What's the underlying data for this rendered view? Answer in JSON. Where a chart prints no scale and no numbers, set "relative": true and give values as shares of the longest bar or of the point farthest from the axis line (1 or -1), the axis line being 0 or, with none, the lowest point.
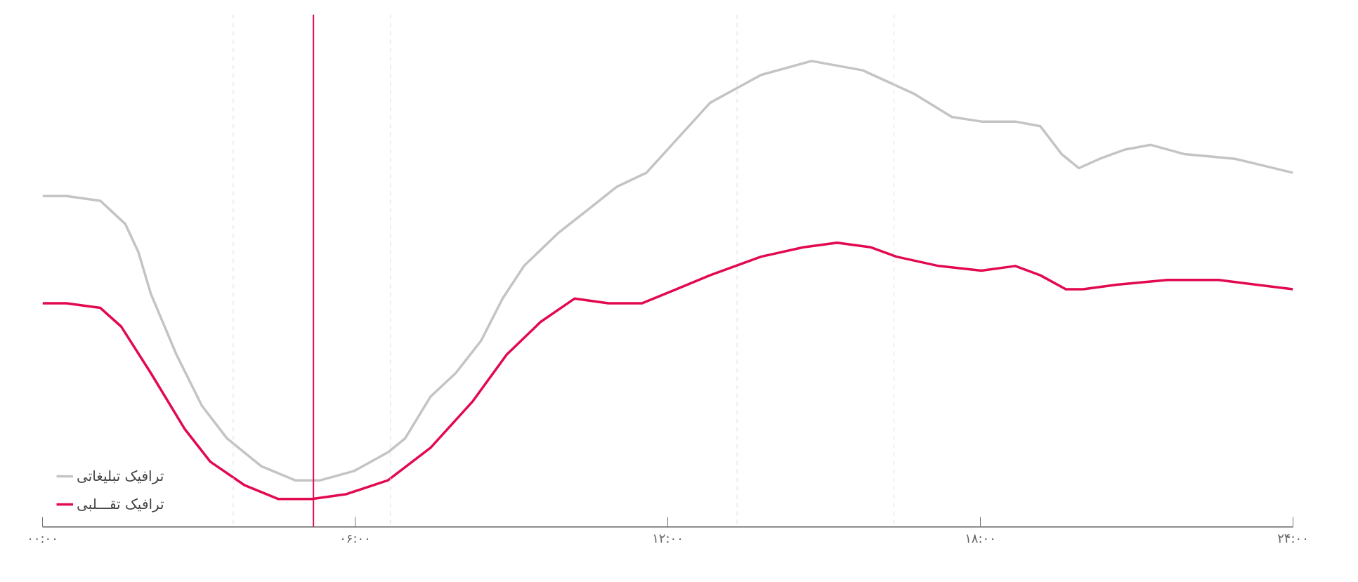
{
  "chart_data": {
    "type": "line",
    "relative": true,
    "xlim": [
      0,
      24
    ],
    "xticks": [
      {
        "value": 0,
        "label": "۰۰:۰۰"
      },
      {
        "value": 6,
        "label": "۰۶:۰۰"
      },
      {
        "value": 12,
        "label": "۱۲:۰۰"
      },
      {
        "value": 18,
        "label": "۱۸:۰۰"
      },
      {
        "value": 24,
        "label": "۲۴:۰۰"
      }
    ],
    "tick_labels": "x",
    "grid": false,
    "legend": "bottom left",
    "marker": "none",
    "line_style": "solid",
    "series": [
      {
        "name": "ترافیک تبلیغاتی",
        "color": "#c4c4c4",
        "x": [
          0,
          0.46,
          1.11,
          1.59,
          1.84,
          2.08,
          2.57,
          3.06,
          3.54,
          4.2,
          4.85,
          5.33,
          5.98,
          6.63,
          6.96,
          7.45,
          7.93,
          8.42,
          8.83,
          9.24,
          9.89,
          10.46,
          11.02,
          11.59,
          12.16,
          12.81,
          13.79,
          14.76,
          15.74,
          16.72,
          17.45,
          18.02,
          18.67,
          19.15,
          19.56,
          19.89,
          20.29,
          20.78,
          21.27,
          21.92,
          22.89,
          24
        ],
        "values": [
          0.71,
          0.71,
          0.7,
          0.65,
          0.59,
          0.5,
          0.37,
          0.26,
          0.19,
          0.13,
          0.1,
          0.1,
          0.12,
          0.16,
          0.19,
          0.28,
          0.33,
          0.4,
          0.49,
          0.56,
          0.63,
          0.68,
          0.73,
          0.76,
          0.83,
          0.91,
          0.97,
          1.0,
          0.98,
          0.93,
          0.88,
          0.87,
          0.87,
          0.86,
          0.8,
          0.77,
          0.79,
          0.81,
          0.82,
          0.8,
          0.79,
          0.76
        ]
      },
      {
        "name": "ترافیک تقـــلبی",
        "color": "#e2094f",
        "x": [
          0,
          0.46,
          1.11,
          1.51,
          2.08,
          2.73,
          3.22,
          3.87,
          4.52,
          5.17,
          5.82,
          6.63,
          7.45,
          8.26,
          8.91,
          9.56,
          10.21,
          10.86,
          11.51,
          12.16,
          12.81,
          13.79,
          14.6,
          15.25,
          15.9,
          16.39,
          17.2,
          18.02,
          18.67,
          19.15,
          19.64,
          19.97,
          20.62,
          21.59,
          22.57,
          24
        ],
        "values": [
          0.48,
          0.48,
          0.47,
          0.43,
          0.33,
          0.21,
          0.14,
          0.09,
          0.06,
          0.06,
          0.07,
          0.1,
          0.17,
          0.27,
          0.37,
          0.44,
          0.49,
          0.48,
          0.48,
          0.51,
          0.54,
          0.58,
          0.6,
          0.61,
          0.6,
          0.58,
          0.56,
          0.55,
          0.56,
          0.54,
          0.51,
          0.51,
          0.52,
          0.53,
          0.53,
          0.51
        ]
      }
    ],
    "ref_lines": [
      {
        "axis": "x",
        "value": 5.2,
        "color": "#e2094f",
        "line_style": "solid"
      },
      {
        "axis": "x",
        "value": 3.66,
        "color": "#dddddd",
        "line_style": "dashed"
      },
      {
        "axis": "x",
        "value": 6.68,
        "color": "#dddddd",
        "line_style": "dashed"
      },
      {
        "axis": "x",
        "value": 13.33,
        "color": "#dddddd",
        "line_style": "dashed"
      },
      {
        "axis": "x",
        "value": 16.34,
        "color": "#dddddd",
        "line_style": "dashed"
      }
    ]
  }
}
